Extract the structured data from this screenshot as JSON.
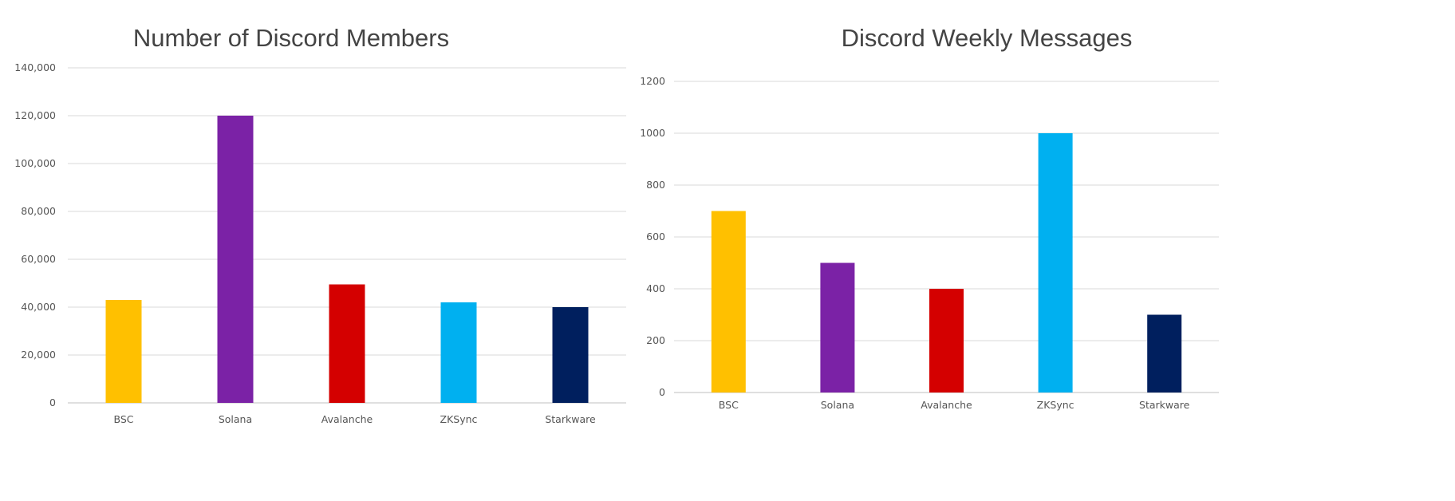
{
  "chart_data": [
    {
      "type": "bar",
      "title": "Number of Discord Members",
      "xlabel": "",
      "ylabel": "",
      "categories": [
        "BSC",
        "Solana",
        "Avalanche",
        "ZKSync",
        "Starkware"
      ],
      "values": [
        43000,
        120000,
        49500,
        42000,
        40000
      ],
      "colors": [
        "#FFC000",
        "#7B22A6",
        "#D40000",
        "#00B0F0",
        "#001F5E"
      ],
      "ylim": [
        0,
        140000
      ],
      "yticks": [
        0,
        20000,
        40000,
        60000,
        80000,
        100000,
        120000,
        140000
      ],
      "ytick_labels": [
        "0",
        "20,000",
        "40,000",
        "60,000",
        "80,000",
        "100,000",
        "120,000",
        "140,000"
      ],
      "grid": true,
      "legend": "none"
    },
    {
      "type": "bar",
      "title": "Discord Weekly Messages",
      "xlabel": "",
      "ylabel": "",
      "categories": [
        "BSC",
        "Solana",
        "Avalanche",
        "ZKSync",
        "Starkware"
      ],
      "values": [
        700,
        500,
        400,
        1000,
        300
      ],
      "colors": [
        "#FFC000",
        "#7B22A6",
        "#D40000",
        "#00B0F0",
        "#001F5E"
      ],
      "ylim": [
        0,
        1200
      ],
      "yticks": [
        0,
        200,
        400,
        600,
        800,
        1000,
        1200
      ],
      "ytick_labels": [
        "0",
        "200",
        "400",
        "600",
        "800",
        "1000",
        "1200"
      ],
      "grid": true,
      "legend": "none"
    }
  ]
}
